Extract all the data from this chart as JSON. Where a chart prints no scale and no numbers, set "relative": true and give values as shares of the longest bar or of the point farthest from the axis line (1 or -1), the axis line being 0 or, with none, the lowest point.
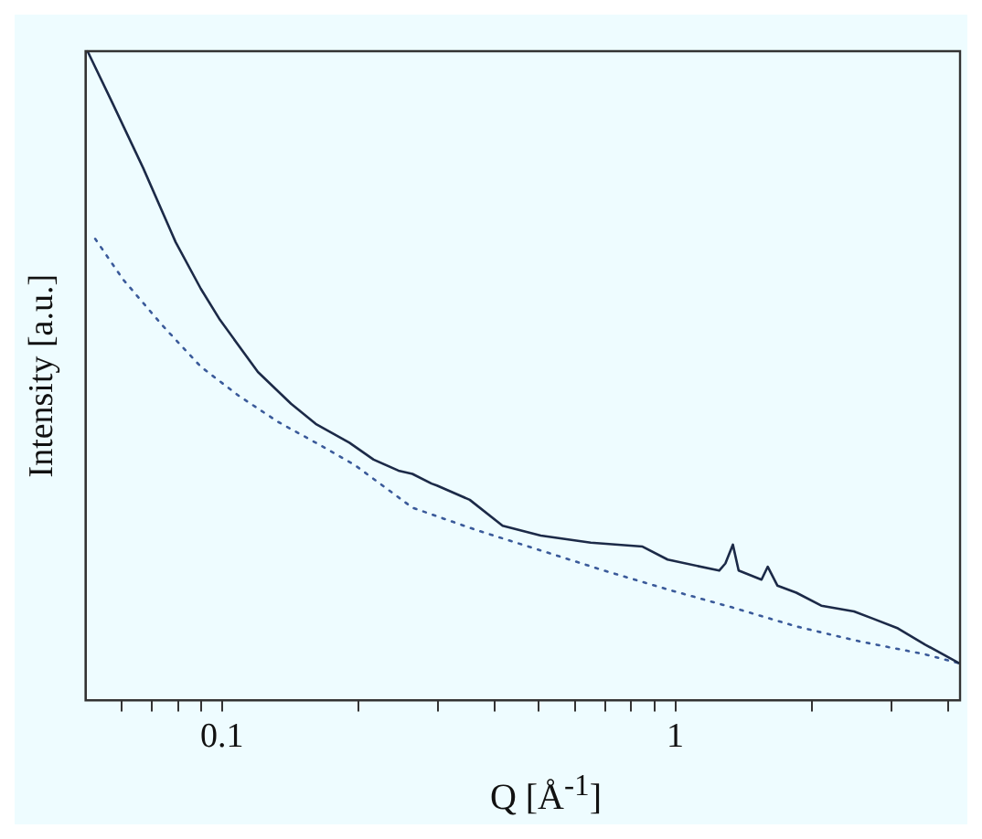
{
  "chart_data": {
    "type": "line",
    "relative": true,
    "xlabel": "Q [Å$^{-1}$]",
    "ylabel": "Intensity [a.u.]",
    "log": "x",
    "xlim": [
      0.05,
      4.25
    ],
    "xticks": [
      {
        "value": 0.06,
        "label": null
      },
      {
        "value": 0.07,
        "label": null
      },
      {
        "value": 0.08,
        "label": null
      },
      {
        "value": 0.09,
        "label": null
      },
      0.1,
      {
        "value": 0.2,
        "label": null
      },
      {
        "value": 0.3,
        "label": null
      },
      {
        "value": 0.4,
        "label": null
      },
      {
        "value": 0.5,
        "label": null
      },
      {
        "value": 0.6,
        "label": null
      },
      {
        "value": 0.7,
        "label": null
      },
      {
        "value": 0.8,
        "label": null
      },
      {
        "value": 0.9,
        "label": null
      },
      1,
      {
        "value": 2,
        "label": null
      },
      {
        "value": 3,
        "label": null
      },
      {
        "value": 4,
        "label": null
      }
    ],
    "grid": false,
    "legend": false,
    "marker": "none",
    "series": [
      {
        "color": "#1c2a48",
        "line_style": "solid",
        "x": [
          0.0505,
          0.0568,
          0.067,
          0.079,
          0.0898,
          0.099,
          0.12,
          0.142,
          0.161,
          0.191,
          0.216,
          0.245,
          0.263,
          0.29,
          0.298,
          0.352,
          0.416,
          0.505,
          0.651,
          0.847,
          0.962,
          1.25,
          1.29,
          1.34,
          1.38,
          1.55,
          1.6,
          1.68,
          1.85,
          2.1,
          2.48,
          2.73,
          3.1,
          3.56,
          4.24
        ],
        "values": [
          1.0,
          0.926,
          0.82,
          0.706,
          0.634,
          0.586,
          0.506,
          0.457,
          0.426,
          0.397,
          0.371,
          0.354,
          0.349,
          0.334,
          0.331,
          0.309,
          0.269,
          0.254,
          0.243,
          0.237,
          0.217,
          0.2,
          0.211,
          0.24,
          0.2,
          0.186,
          0.206,
          0.177,
          0.166,
          0.146,
          0.137,
          0.126,
          0.111,
          0.086,
          0.057
        ]
      },
      {
        "color": "#3a5a9a",
        "line_style": "dotted",
        "x": [
          0.0525,
          0.0604,
          0.074,
          0.0898,
          0.109,
          0.133,
          0.161,
          0.196,
          0.263,
          0.362,
          0.505,
          0.697,
          0.962,
          1.34,
          1.85,
          2.55,
          3.56,
          4.24
        ],
        "values": [
          0.711,
          0.649,
          0.577,
          0.514,
          0.469,
          0.429,
          0.397,
          0.363,
          0.297,
          0.263,
          0.231,
          0.2,
          0.171,
          0.143,
          0.114,
          0.091,
          0.071,
          0.057
        ]
      }
    ]
  }
}
